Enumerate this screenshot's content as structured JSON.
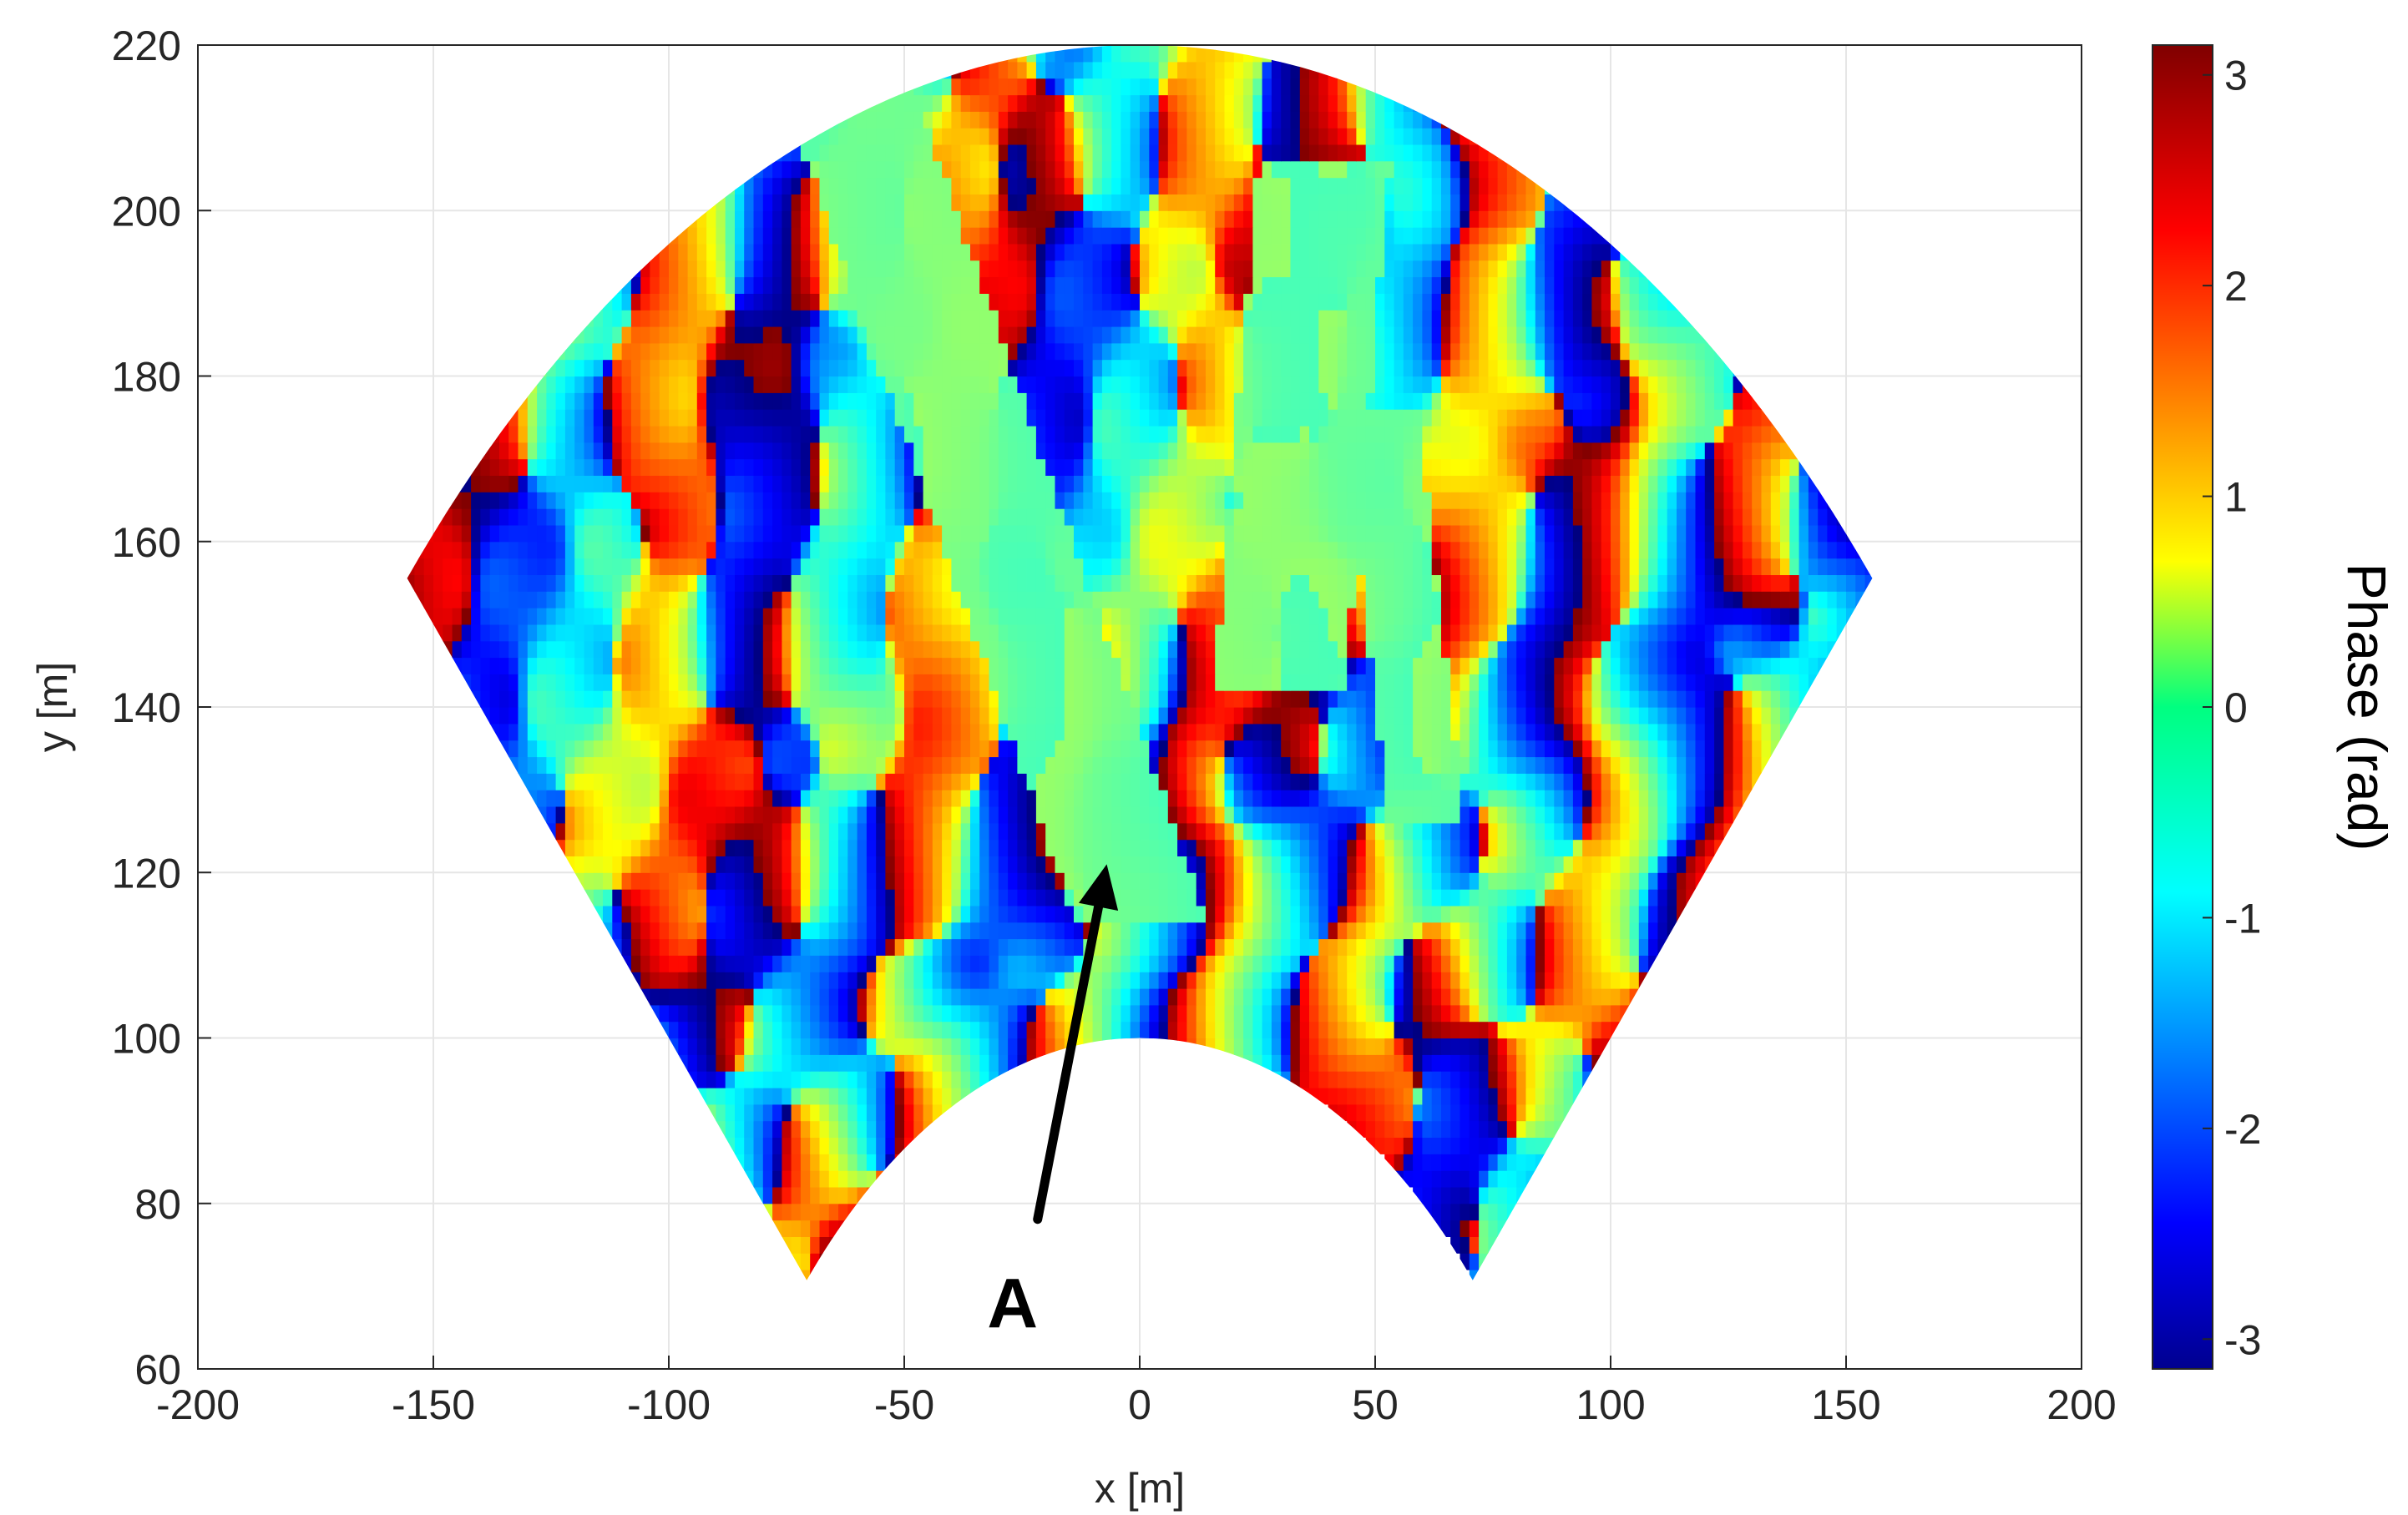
{
  "chart_data": {
    "type": "heatmap",
    "title": "",
    "xlabel": "x [m]",
    "ylabel": "y [m]",
    "xlim": [
      -200,
      200
    ],
    "ylim": [
      60,
      220
    ],
    "xticks": [
      -200,
      -150,
      -100,
      -50,
      0,
      50,
      100,
      150,
      200
    ],
    "yticks": [
      60,
      80,
      100,
      120,
      140,
      160,
      180,
      200,
      220
    ],
    "xtick_labels": [
      "-200",
      "-150",
      "-100",
      "-50",
      "0",
      "50",
      "100",
      "150",
      "200"
    ],
    "ytick_labels": [
      "60",
      "80",
      "100",
      "120",
      "140",
      "160",
      "180",
      "200",
      "220"
    ],
    "grid": true,
    "colormap": "jet",
    "colorbar": {
      "label": "Phase (rad)",
      "limits": [
        -3.1416,
        3.1416
      ],
      "ticks": [
        -3,
        -2,
        -1,
        0,
        1,
        2,
        3
      ],
      "tick_labels": [
        "-3",
        "-2",
        "-1",
        "0",
        "1",
        "2",
        "3"
      ]
    },
    "sector": {
      "center": [
        0,
        0
      ],
      "inner_radius": 100,
      "outer_radius": 220,
      "half_angle_deg": 45
    },
    "annotation": {
      "text": "A",
      "points_to": [
        -7,
        121
      ],
      "text_at": [
        -27,
        68
      ]
    }
  }
}
